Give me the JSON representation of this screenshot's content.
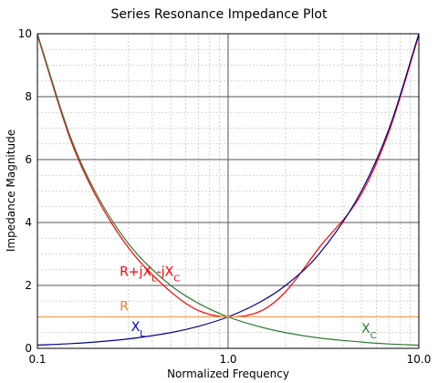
{
  "chart_data": {
    "type": "line",
    "title": "Series Resonance Impedance Plot",
    "xlabel": "Normalized Frequency",
    "ylabel": "Impedance Magnitude",
    "x_scale": "log",
    "xlim": [
      0.1,
      10.0
    ],
    "ylim": [
      0,
      10
    ],
    "x_tick_labels": [
      {
        "value": 0.1,
        "label": "0.1"
      },
      {
        "value": 1.0,
        "label": "1.0"
      },
      {
        "value": 10.0,
        "label": "10.0"
      }
    ],
    "y_tick_labels": [
      {
        "value": 0,
        "label": "0"
      },
      {
        "value": 2,
        "label": "2"
      },
      {
        "value": 4,
        "label": "4"
      },
      {
        "value": 6,
        "label": "6"
      },
      {
        "value": 8,
        "label": "8"
      },
      {
        "value": 10,
        "label": "10"
      }
    ],
    "grid": true,
    "legend": "none",
    "x": [
      0.1,
      0.15,
      0.2,
      0.3,
      0.5,
      0.7,
      1.0,
      1.5,
      2.0,
      3.0,
      5.0,
      7.0,
      10.0
    ],
    "series": [
      {
        "name": "R+jXL-jXC",
        "color": "#ff0000",
        "values": [
          9.95,
          6.59,
          4.91,
          3.2,
          1.8,
          1.2,
          1.0,
          1.2,
          1.8,
          3.2,
          4.91,
          6.92,
          9.95
        ]
      },
      {
        "name": "XC",
        "color": "#2e7d32",
        "values": [
          10.0,
          6.67,
          5.0,
          3.33,
          2.0,
          1.43,
          1.0,
          0.67,
          0.5,
          0.33,
          0.2,
          0.14,
          0.1
        ]
      },
      {
        "name": "XL",
        "color": "#00008b",
        "values": [
          0.1,
          0.15,
          0.2,
          0.3,
          0.5,
          0.7,
          1.0,
          1.5,
          2.0,
          3.0,
          5.0,
          7.0,
          10.0
        ]
      },
      {
        "name": "R",
        "color": "#f0a050",
        "values": [
          1,
          1,
          1,
          1,
          1,
          1,
          1,
          1,
          1,
          1,
          1,
          1,
          1
        ]
      }
    ],
    "annotations": [
      {
        "id": "rjx",
        "base": "R+jX",
        "sub1": "L",
        "mid": "-jX",
        "sub2": "C",
        "color": "#ff0000",
        "x": 0.27,
        "y": 2.3
      },
      {
        "id": "r",
        "text": "R",
        "color": "#f08020",
        "x": 0.27,
        "y": 1.2
      },
      {
        "id": "xl",
        "base": "X",
        "sub": "L",
        "color": "#0000cc",
        "x": 0.31,
        "y": 0.55
      },
      {
        "id": "xc",
        "base": "X",
        "sub": "C",
        "color": "#2e7d32",
        "x": 5.0,
        "y": 0.5
      }
    ]
  }
}
